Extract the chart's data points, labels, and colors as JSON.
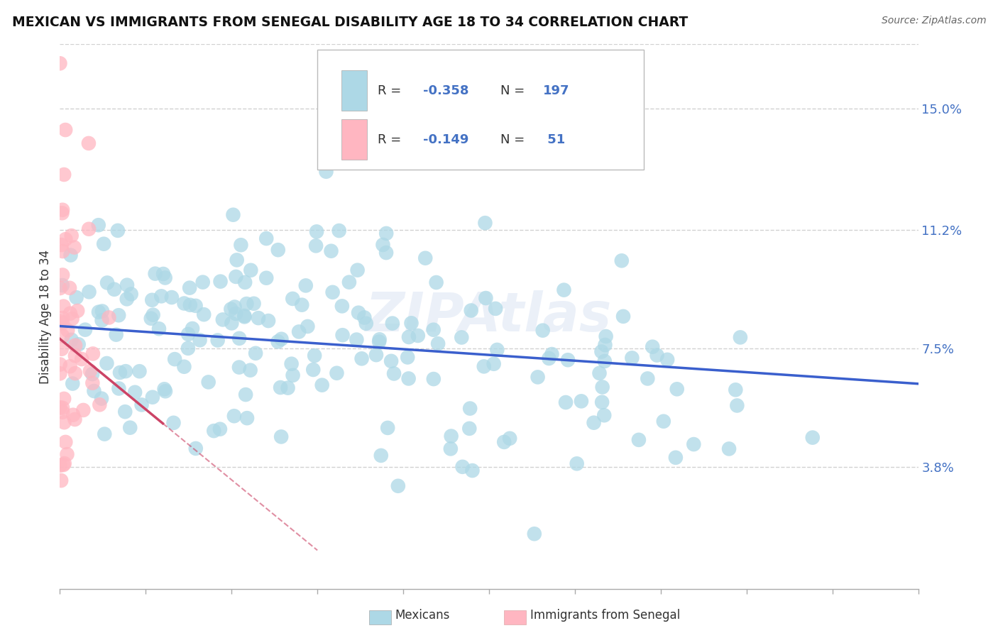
{
  "title": "MEXICAN VS IMMIGRANTS FROM SENEGAL DISABILITY AGE 18 TO 34 CORRELATION CHART",
  "source": "Source: ZipAtlas.com",
  "ylabel": "Disability Age 18 to 34",
  "ytick_values": [
    3.8,
    7.5,
    11.2,
    15.0
  ],
  "legend_r1": "-0.358",
  "legend_n1": "197",
  "legend_r2": "-0.149",
  "legend_n2": "51",
  "watermark": "ZIPAtlas",
  "background_color": "#ffffff",
  "mexican_color": "#add8e6",
  "senegal_color": "#ffb6c1",
  "trend_mexican_color": "#3a5fcd",
  "trend_senegal_color": "#cc4466",
  "grid_color": "#cccccc",
  "mex_intercept": 8.2,
  "mex_slope": -1.8,
  "sen_intercept": 7.8,
  "sen_slope": -22.0,
  "N_mex": 197,
  "N_sen": 51,
  "text_blue": "#4472c4",
  "text_dark": "#333333"
}
